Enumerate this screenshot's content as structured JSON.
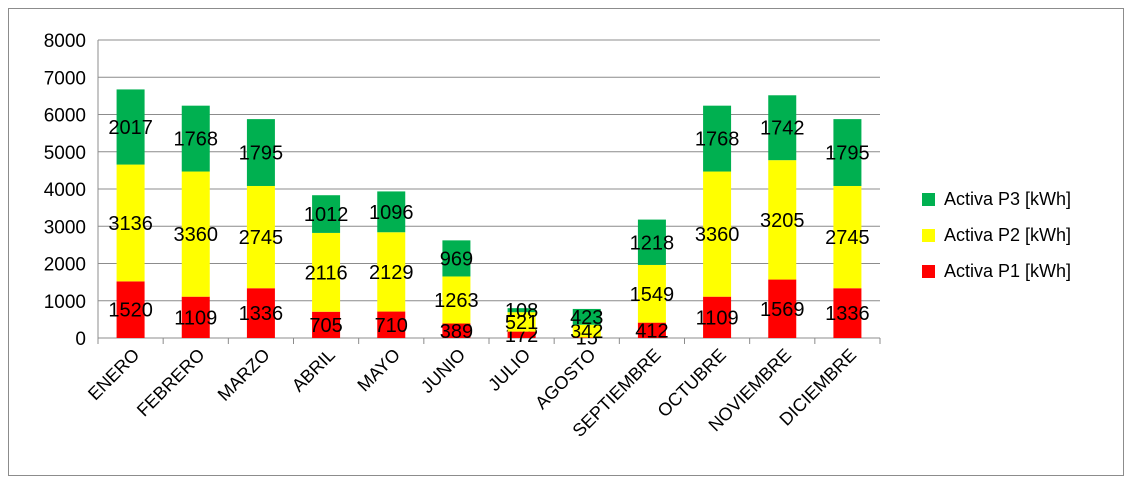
{
  "chart_data": {
    "type": "bar",
    "stacked": true,
    "categories": [
      "ENERO",
      "FEBRERO",
      "MARZO",
      "ABRIL",
      "MAYO",
      "JUNIO",
      "JULIO",
      "AGOSTO",
      "SEPTIEMBRE",
      "OCTUBRE",
      "NOVIEMBRE",
      "DICIEMBRE"
    ],
    "series": [
      {
        "name": "Activa P1 [kWh]",
        "color": "#ff0000",
        "values": [
          1520,
          1109,
          1336,
          705,
          710,
          389,
          172,
          15,
          412,
          1109,
          1569,
          1336
        ]
      },
      {
        "name": "Activa P2 [kWh]",
        "color": "#ffff00",
        "values": [
          3136,
          3360,
          2745,
          2116,
          2129,
          1263,
          521,
          342,
          1549,
          3360,
          3205,
          2745
        ]
      },
      {
        "name": "Activa P3 [kWh]",
        "color": "#00b050",
        "values": [
          2017,
          1768,
          1795,
          1012,
          1096,
          969,
          108,
          423,
          1218,
          1768,
          1742,
          1795
        ]
      }
    ],
    "ylim": [
      0,
      8000
    ],
    "yticks": [
      0,
      1000,
      2000,
      3000,
      4000,
      5000,
      6000,
      7000,
      8000
    ],
    "grid": true,
    "legend_position": "right",
    "title": "",
    "xlabel": "",
    "ylabel": ""
  }
}
